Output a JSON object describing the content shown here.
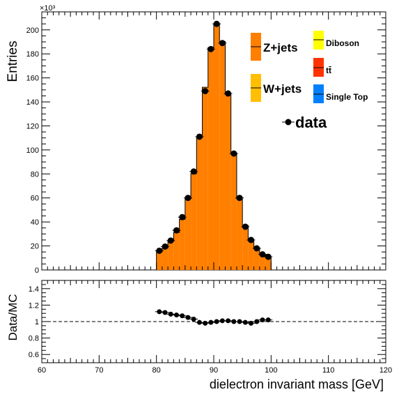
{
  "chart_data": [
    {
      "type": "bar",
      "title": "",
      "ylabel": "Entries",
      "y_multiplier": "×10³",
      "xlim": [
        60,
        120
      ],
      "ylim": [
        0,
        215
      ],
      "x_ticks": [
        "60",
        "70",
        "80",
        "90",
        "100",
        "110",
        "120"
      ],
      "y_ticks": [
        "0",
        "20",
        "40",
        "60",
        "80",
        "100",
        "120",
        "140",
        "160",
        "180",
        "200"
      ],
      "bin_edges": [
        80,
        81,
        82,
        83,
        84,
        85,
        86,
        87,
        88,
        89,
        90,
        91,
        92,
        93,
        94,
        95,
        96,
        97,
        98,
        99,
        100
      ],
      "series": [
        {
          "name": "Z+jets",
          "color": "#ff7f00",
          "values": [
            15,
            18,
            24,
            31,
            42,
            59,
            80,
            110,
            152,
            185,
            205,
            190,
            146,
            97,
            59,
            37,
            24,
            18,
            13,
            10
          ]
        },
        {
          "name": "W+jets",
          "color": "#ffbf00",
          "values": [
            0.2,
            0.2,
            0.2,
            0.2,
            0.2,
            0.2,
            0.2,
            0.2,
            0.2,
            0.2,
            0.2,
            0.2,
            0.2,
            0.2,
            0.2,
            0.2,
            0.2,
            0.2,
            0.2,
            0.2
          ]
        },
        {
          "name": "Diboson",
          "color": "#ffff00",
          "values": []
        },
        {
          "name": "tt̄",
          "color": "#ff3300",
          "values": []
        },
        {
          "name": "Single Top",
          "color": "#0080ff",
          "values": []
        }
      ],
      "data_points": {
        "name": "data",
        "x": [
          80.5,
          81.5,
          82.5,
          83.5,
          84.5,
          85.5,
          86.5,
          87.5,
          88.5,
          89.5,
          90.5,
          91.5,
          92.5,
          93.5,
          94.5,
          95.5,
          96.5,
          97.5,
          98.5,
          99.5
        ],
        "y": [
          16,
          19.5,
          24.5,
          33,
          44,
          60,
          82,
          111,
          149,
          184,
          205,
          189,
          147,
          97,
          60,
          36,
          25,
          18,
          13,
          11
        ]
      },
      "legend": [
        "Z+jets",
        "W+jets",
        "Diboson",
        "tt̄",
        "Single Top",
        "data"
      ],
      "legend_placement": "top-right"
    },
    {
      "type": "scatter",
      "ylabel": "Data/MC",
      "xlabel": "dielectron invariant mass [GeV]",
      "xlim": [
        60,
        120
      ],
      "ylim": [
        0.5,
        1.5
      ],
      "x_ticks": [
        "60",
        "70",
        "80",
        "90",
        "100",
        "110",
        "120"
      ],
      "y_ticks": [
        "0.6",
        "0.8",
        "1",
        "1.2",
        "1.4"
      ],
      "reference_line": 1,
      "x": [
        80.5,
        81.5,
        82.5,
        83.5,
        84.5,
        85.5,
        86.5,
        87.5,
        88.5,
        89.5,
        90.5,
        91.5,
        92.5,
        93.5,
        94.5,
        95.5,
        96.5,
        97.5,
        98.5,
        99.5
      ],
      "y": [
        1.12,
        1.11,
        1.09,
        1.08,
        1.07,
        1.05,
        1.03,
        0.99,
        0.98,
        0.99,
        1.0,
        1.01,
        1.01,
        1.0,
        1.0,
        0.99,
        0.98,
        1.0,
        1.02,
        1.02
      ]
    }
  ]
}
